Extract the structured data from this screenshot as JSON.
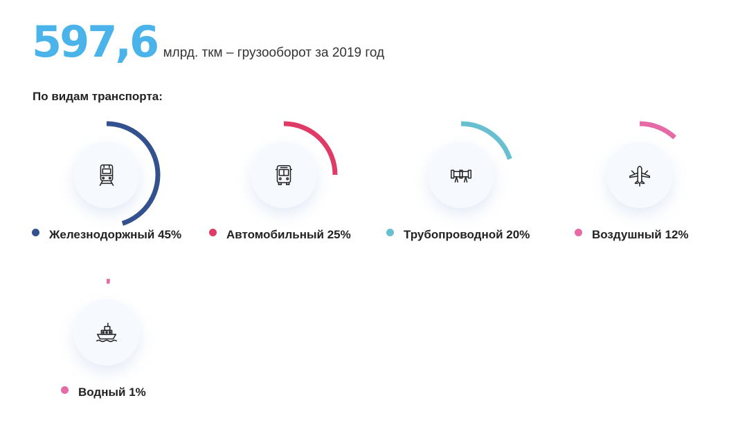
{
  "headline": {
    "value": "597,6",
    "caption": "млрд. ткм – грузооборот за 2019 год"
  },
  "section_title": "По видам транспорта:",
  "colors": {
    "accent": "#4ab4ea",
    "rail": "#34518f",
    "auto": "#e03a67",
    "pipe": "#67bfd0",
    "air": "#e56aa6",
    "water": "#e56aa6"
  },
  "chart_data": {
    "type": "radial-progress",
    "title": "По видам транспорта:",
    "items": [
      {
        "key": "rail",
        "label": "Железнодоржный",
        "pct_label": "45%",
        "value": 45,
        "color": "#34518f",
        "icon": "train-icon"
      },
      {
        "key": "auto",
        "label": "Автомобильный",
        "pct_label": "25%",
        "value": 25,
        "color": "#e03a67",
        "icon": "bus-icon"
      },
      {
        "key": "pipe",
        "label": "Трубопроводной",
        "pct_label": "20%",
        "value": 20,
        "color": "#67bfd0",
        "icon": "pipeline-icon"
      },
      {
        "key": "air",
        "label": "Воздушный",
        "pct_label": "12%",
        "value": 12,
        "color": "#e56aa6",
        "icon": "airplane-icon"
      },
      {
        "key": "water",
        "label": "Водный",
        "pct_label": "1%",
        "value": 1,
        "color": "#e56aa6",
        "icon": "ship-icon"
      }
    ]
  }
}
